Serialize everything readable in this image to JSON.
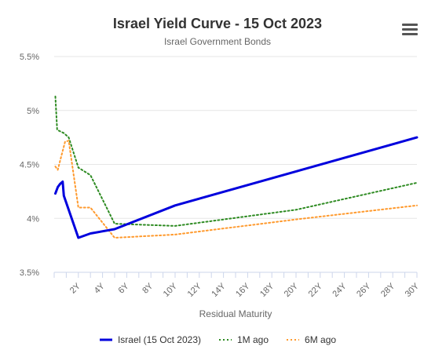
{
  "chart_data": {
    "type": "line",
    "title": "Israel Yield Curve - 15 Oct 2023",
    "subtitle": "Israel Government Bonds",
    "xlabel": "Residual Maturity",
    "ylabel": "",
    "xlim": [
      0,
      30
    ],
    "ylim": [
      3.5,
      5.5
    ],
    "x_ticks": [
      "2Y",
      "4Y",
      "6Y",
      "8Y",
      "10Y",
      "12Y",
      "14Y",
      "16Y",
      "18Y",
      "20Y",
      "22Y",
      "24Y",
      "26Y",
      "28Y",
      "30Y"
    ],
    "y_ticks": [
      "3.5%",
      "4%",
      "4.5%",
      "5%",
      "5.5%"
    ],
    "grid": true,
    "legend_position": "bottom",
    "series": [
      {
        "name": "Israel (15 Oct 2023)",
        "color": "#0000dd",
        "style": "solid",
        "points": [
          [
            0.1,
            4.23
          ],
          [
            0.3,
            4.29
          ],
          [
            0.5,
            4.32
          ],
          [
            0.7,
            4.34
          ],
          [
            0.8,
            4.21
          ],
          [
            2.0,
            3.82
          ],
          [
            3.0,
            3.86
          ],
          [
            5.0,
            3.9
          ],
          [
            10.0,
            4.12
          ],
          [
            30.0,
            4.75
          ]
        ]
      },
      {
        "name": "1M ago",
        "color": "#2e8b22",
        "style": "dotted",
        "points": [
          [
            0.1,
            5.13
          ],
          [
            0.25,
            4.82
          ],
          [
            0.8,
            4.79
          ],
          [
            1.2,
            4.75
          ],
          [
            2.0,
            4.47
          ],
          [
            3.0,
            4.4
          ],
          [
            5.0,
            3.95
          ],
          [
            10.0,
            3.93
          ],
          [
            20.0,
            4.08
          ],
          [
            30.0,
            4.33
          ]
        ]
      },
      {
        "name": "6M ago",
        "color": "#ff9a2e",
        "style": "dotted",
        "points": [
          [
            0.1,
            4.48
          ],
          [
            0.3,
            4.45
          ],
          [
            0.6,
            4.58
          ],
          [
            0.9,
            4.71
          ],
          [
            1.2,
            4.72
          ],
          [
            2.0,
            4.1
          ],
          [
            3.0,
            4.1
          ],
          [
            5.0,
            3.82
          ],
          [
            10.0,
            3.85
          ],
          [
            20.0,
            3.99
          ],
          [
            30.0,
            4.12
          ]
        ]
      }
    ]
  },
  "menu_icon": "hamburger-menu-icon"
}
